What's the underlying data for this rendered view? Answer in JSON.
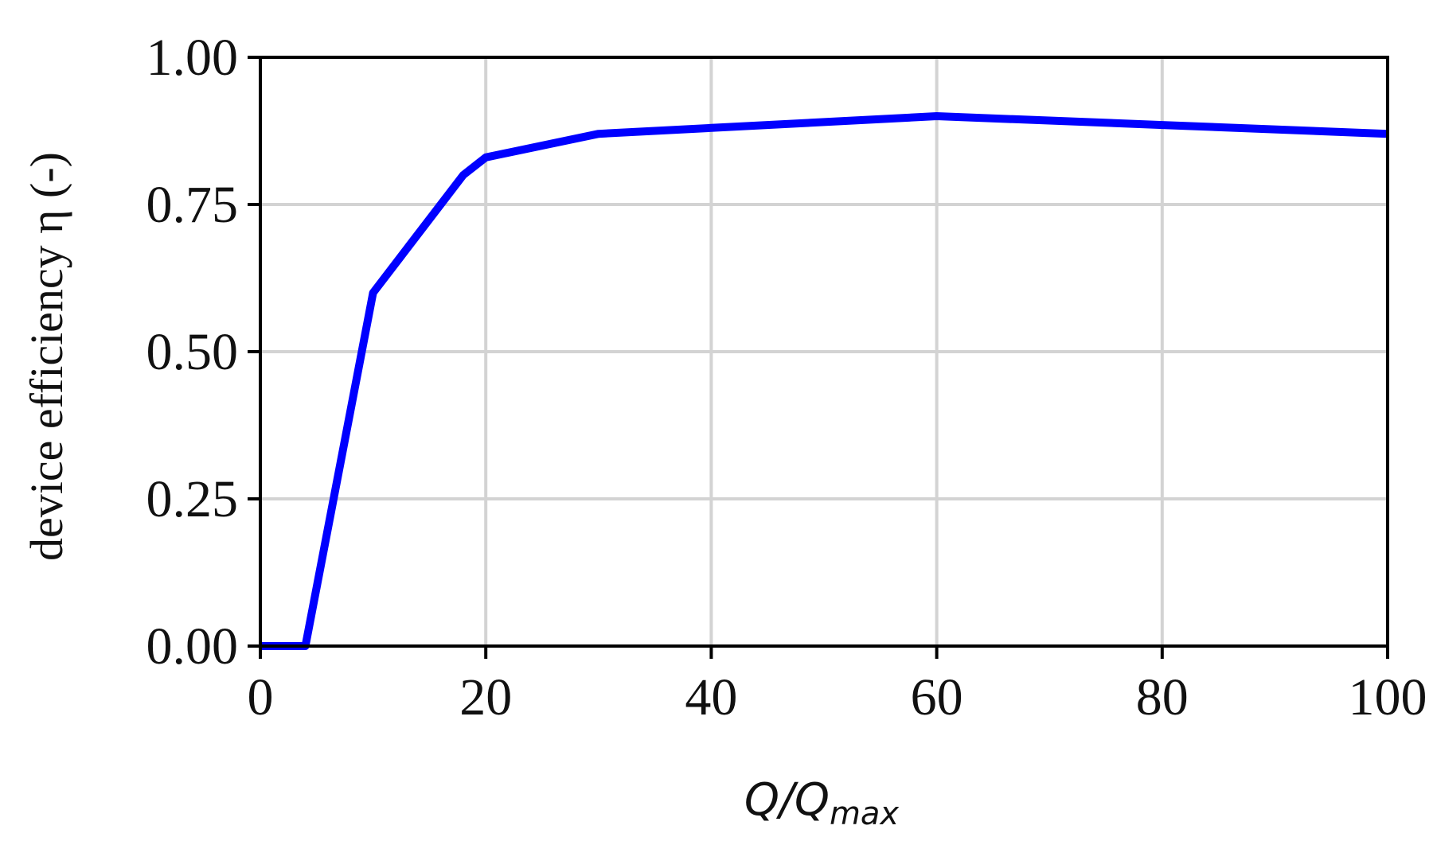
{
  "chart_data": {
    "type": "line",
    "x": [
      0,
      4,
      10,
      18,
      20,
      30,
      40,
      60,
      80,
      100
    ],
    "series": [
      {
        "values": [
          0.0,
          0.0,
          0.6,
          0.8,
          0.83,
          0.87,
          0.88,
          0.9,
          0.885,
          0.87
        ],
        "color": "#0000ff"
      }
    ],
    "xlabel": {
      "main": "Q/Q",
      "sub": "max"
    },
    "ylabel": "device efficiency η (-)",
    "xlim": [
      0,
      100
    ],
    "ylim": [
      0,
      1
    ],
    "xticks": [
      0,
      20,
      40,
      60,
      80,
      100
    ],
    "xtick_labels": [
      "0",
      "20",
      "40",
      "60",
      "80",
      "100"
    ],
    "yticks": [
      0,
      0.25,
      0.5,
      0.75,
      1.0
    ],
    "ytick_labels": [
      "0.00",
      "0.25",
      "0.50",
      "0.75",
      "1.00"
    ],
    "grid": true,
    "grid_color": "#d3d3d3",
    "axis_color": "#000000"
  }
}
